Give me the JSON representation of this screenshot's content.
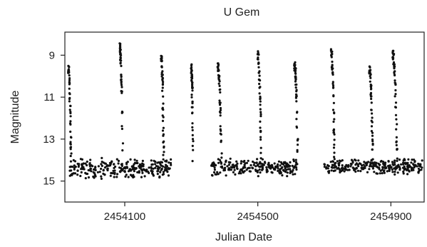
{
  "chart_data": {
    "type": "scatter",
    "title": "U Gem",
    "xlabel": "Julian Date",
    "ylabel": "Magnitude",
    "xlim": [
      2453920,
      2455000
    ],
    "ylim": [
      16.0,
      7.9
    ],
    "y_inverted": true,
    "grid": false,
    "x_ticks": [
      2454100,
      2454500,
      2454900
    ],
    "x_tick_labels": [
      "2454100",
      "2454500",
      "2454900"
    ],
    "y_ticks": [
      9,
      11,
      13,
      15
    ],
    "y_tick_labels": [
      "9",
      "11",
      "13",
      "15"
    ],
    "marker_color": "#111111",
    "outbursts": [
      {
        "start": 2453930,
        "peak_mag": 9.6,
        "decline_days": 25
      },
      {
        "start": 2454085,
        "peak_mag": 8.6,
        "decline_days": 25
      },
      {
        "start": 2454210,
        "peak_mag": 9.1,
        "decline_days": 20
      },
      {
        "start": 2454300,
        "peak_mag": 9.6,
        "decline_days": 15
      },
      {
        "start": 2454380,
        "peak_mag": 9.5,
        "decline_days": 30
      },
      {
        "start": 2454500,
        "peak_mag": 9.0,
        "decline_days": 30
      },
      {
        "start": 2454610,
        "peak_mag": 9.5,
        "decline_days": 30
      },
      {
        "start": 2454720,
        "peak_mag": 8.8,
        "decline_days": 30
      },
      {
        "start": 2454835,
        "peak_mag": 9.6,
        "decline_days": 30
      },
      {
        "start": 2454905,
        "peak_mag": 8.9,
        "decline_days": 40
      }
    ],
    "quiescence": [
      {
        "x": [
          2453935,
          2454240
        ],
        "mag": [
          13.9,
          14.9
        ]
      },
      {
        "x": [
          2454360,
          2454620
        ],
        "mag": [
          13.9,
          14.8
        ]
      },
      {
        "x": [
          2454700,
          2454995
        ],
        "mag": [
          13.9,
          14.7
        ]
      }
    ]
  }
}
